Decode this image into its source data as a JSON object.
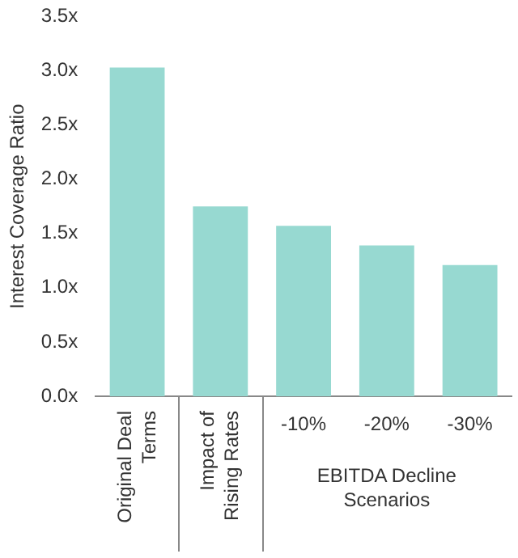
{
  "chart_data": {
    "type": "bar",
    "ylabel": "Interest Coverage Ratio",
    "categories": [
      "Original Deal Terms",
      "Impact of Rising Rates",
      "-10%",
      "-20%",
      "-30%"
    ],
    "values": [
      3.03,
      1.75,
      1.57,
      1.39,
      1.21
    ],
    "color": "#97d9d1",
    "ylim": [
      0,
      3.5
    ],
    "yticks": [
      {
        "value": 0,
        "label": "0.0x"
      },
      {
        "value": 0.5,
        "label": "0.5x"
      },
      {
        "value": 1,
        "label": "1.0x"
      },
      {
        "value": 1.5,
        "label": "1.5x"
      },
      {
        "value": 2,
        "label": "2.0x"
      },
      {
        "value": 2.5,
        "label": "2.5x"
      },
      {
        "value": 3,
        "label": "3.0x"
      },
      {
        "value": 3.5,
        "label": "3.5x"
      }
    ],
    "grid": false,
    "legend": false,
    "annotations": [
      "EBITDA Decline Scenarios"
    ]
  }
}
